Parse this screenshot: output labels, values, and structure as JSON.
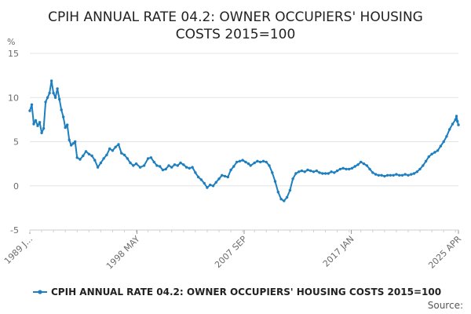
{
  "chart_data": {
    "type": "line",
    "title_lines": [
      "CPIH ANNUAL RATE 04.2: OWNER OCCUPIERS' HOUSING",
      "COSTS 2015=100"
    ],
    "ylabel": "%",
    "ylim": [
      -5,
      15
    ],
    "y_ticks": [
      "15",
      "10",
      "5",
      "0",
      "-5"
    ],
    "x_tick_labels": [
      "1989 J...",
      "1998 MAY",
      "2007 SEP",
      "2017 JAN",
      "2025 APR"
    ],
    "grid": true,
    "legend_position": "bottom",
    "series": [
      {
        "name": "CPIH ANNUAL RATE 04.2: OWNER OCCUPIERS' HOUSING COSTS 2015=100",
        "color": "#1d7fbf",
        "points": [
          [
            "1989-01",
            8.5
          ],
          [
            "1989-03",
            9.2
          ],
          [
            "1989-05",
            7.0
          ],
          [
            "1989-07",
            7.4
          ],
          [
            "1989-09",
            6.8
          ],
          [
            "1989-11",
            7.2
          ],
          [
            "1990-01",
            6.0
          ],
          [
            "1990-03",
            6.5
          ],
          [
            "1990-05",
            9.5
          ],
          [
            "1990-07",
            10.0
          ],
          [
            "1990-09",
            10.5
          ],
          [
            "1990-11",
            11.9
          ],
          [
            "1991-01",
            10.5
          ],
          [
            "1991-03",
            10.0
          ],
          [
            "1991-05",
            11.0
          ],
          [
            "1991-07",
            9.8
          ],
          [
            "1991-09",
            8.6
          ],
          [
            "1991-11",
            7.8
          ],
          [
            "1992-01",
            6.6
          ],
          [
            "1992-03",
            6.9
          ],
          [
            "1992-05",
            5.2
          ],
          [
            "1992-07",
            4.6
          ],
          [
            "1992-09",
            4.8
          ],
          [
            "1992-11",
            5.0
          ],
          [
            "1993-01",
            3.2
          ],
          [
            "1993-04",
            3.0
          ],
          [
            "1993-07",
            3.4
          ],
          [
            "1993-10",
            3.9
          ],
          [
            "1994-01",
            3.6
          ],
          [
            "1994-04",
            3.4
          ],
          [
            "1994-07",
            2.9
          ],
          [
            "1994-10",
            2.1
          ],
          [
            "1995-01",
            2.6
          ],
          [
            "1995-04",
            3.1
          ],
          [
            "1995-07",
            3.5
          ],
          [
            "1995-10",
            4.2
          ],
          [
            "1996-01",
            4.0
          ],
          [
            "1996-04",
            4.4
          ],
          [
            "1996-07",
            4.7
          ],
          [
            "1996-10",
            3.7
          ],
          [
            "1997-01",
            3.5
          ],
          [
            "1997-04",
            3.1
          ],
          [
            "1997-07",
            2.6
          ],
          [
            "1997-10",
            2.3
          ],
          [
            "1998-01",
            2.5
          ],
          [
            "1998-05",
            2.1
          ],
          [
            "1998-09",
            2.3
          ],
          [
            "1999-01",
            3.1
          ],
          [
            "1999-04",
            3.2
          ],
          [
            "1999-07",
            2.7
          ],
          [
            "1999-10",
            2.3
          ],
          [
            "2000-01",
            2.2
          ],
          [
            "2000-04",
            1.8
          ],
          [
            "2000-07",
            1.9
          ],
          [
            "2000-10",
            2.3
          ],
          [
            "2001-01",
            2.1
          ],
          [
            "2001-04",
            2.4
          ],
          [
            "2001-07",
            2.3
          ],
          [
            "2001-10",
            2.6
          ],
          [
            "2002-01",
            2.4
          ],
          [
            "2002-04",
            2.1
          ],
          [
            "2002-07",
            2.0
          ],
          [
            "2002-10",
            2.1
          ],
          [
            "2003-01",
            1.5
          ],
          [
            "2003-04",
            1.0
          ],
          [
            "2003-07",
            0.7
          ],
          [
            "2003-10",
            0.3
          ],
          [
            "2004-01",
            -0.2
          ],
          [
            "2004-04",
            0.1
          ],
          [
            "2004-07",
            0.0
          ],
          [
            "2004-10",
            0.4
          ],
          [
            "2005-01",
            0.8
          ],
          [
            "2005-04",
            1.2
          ],
          [
            "2005-07",
            1.1
          ],
          [
            "2005-10",
            1.0
          ],
          [
            "2006-01",
            1.8
          ],
          [
            "2006-04",
            2.2
          ],
          [
            "2006-07",
            2.7
          ],
          [
            "2006-10",
            2.8
          ],
          [
            "2007-01",
            2.9
          ],
          [
            "2007-04",
            2.7
          ],
          [
            "2007-07",
            2.5
          ],
          [
            "2007-09",
            2.3
          ],
          [
            "2008-01",
            2.6
          ],
          [
            "2008-04",
            2.8
          ],
          [
            "2008-07",
            2.7
          ],
          [
            "2008-10",
            2.8
          ],
          [
            "2009-01",
            2.7
          ],
          [
            "2009-04",
            2.3
          ],
          [
            "2009-07",
            1.5
          ],
          [
            "2009-10",
            0.5
          ],
          [
            "2010-01",
            -0.7
          ],
          [
            "2010-04",
            -1.5
          ],
          [
            "2010-07",
            -1.7
          ],
          [
            "2010-10",
            -1.3
          ],
          [
            "2011-01",
            -0.5
          ],
          [
            "2011-04",
            0.8
          ],
          [
            "2011-07",
            1.4
          ],
          [
            "2011-10",
            1.6
          ],
          [
            "2012-01",
            1.7
          ],
          [
            "2012-04",
            1.6
          ],
          [
            "2012-07",
            1.8
          ],
          [
            "2012-10",
            1.7
          ],
          [
            "2013-01",
            1.6
          ],
          [
            "2013-04",
            1.7
          ],
          [
            "2013-07",
            1.5
          ],
          [
            "2013-10",
            1.4
          ],
          [
            "2014-01",
            1.4
          ],
          [
            "2014-04",
            1.4
          ],
          [
            "2014-07",
            1.6
          ],
          [
            "2014-10",
            1.5
          ],
          [
            "2015-01",
            1.7
          ],
          [
            "2015-04",
            1.9
          ],
          [
            "2015-07",
            2.0
          ],
          [
            "2015-10",
            1.9
          ],
          [
            "2016-01",
            1.9
          ],
          [
            "2016-04",
            2.0
          ],
          [
            "2016-07",
            2.2
          ],
          [
            "2016-10",
            2.4
          ],
          [
            "2017-01",
            2.7
          ],
          [
            "2017-04",
            2.5
          ],
          [
            "2017-07",
            2.3
          ],
          [
            "2017-10",
            1.9
          ],
          [
            "2018-01",
            1.5
          ],
          [
            "2018-04",
            1.3
          ],
          [
            "2018-07",
            1.2
          ],
          [
            "2018-10",
            1.2
          ],
          [
            "2019-01",
            1.1
          ],
          [
            "2019-04",
            1.2
          ],
          [
            "2019-07",
            1.2
          ],
          [
            "2019-10",
            1.2
          ],
          [
            "2020-01",
            1.3
          ],
          [
            "2020-04",
            1.2
          ],
          [
            "2020-07",
            1.2
          ],
          [
            "2020-10",
            1.3
          ],
          [
            "2021-01",
            1.2
          ],
          [
            "2021-04",
            1.3
          ],
          [
            "2021-07",
            1.4
          ],
          [
            "2021-10",
            1.6
          ],
          [
            "2022-01",
            1.9
          ],
          [
            "2022-04",
            2.3
          ],
          [
            "2022-07",
            2.8
          ],
          [
            "2022-10",
            3.3
          ],
          [
            "2023-01",
            3.6
          ],
          [
            "2023-04",
            3.8
          ],
          [
            "2023-07",
            4.0
          ],
          [
            "2023-10",
            4.5
          ],
          [
            "2024-01",
            5.0
          ],
          [
            "2024-04",
            5.6
          ],
          [
            "2024-07",
            6.4
          ],
          [
            "2024-10",
            7.0
          ],
          [
            "2025-01",
            7.5
          ],
          [
            "2025-02",
            7.9
          ],
          [
            "2025-03",
            7.3
          ],
          [
            "2025-04",
            6.9
          ]
        ]
      }
    ],
    "source_label": "Source:"
  }
}
